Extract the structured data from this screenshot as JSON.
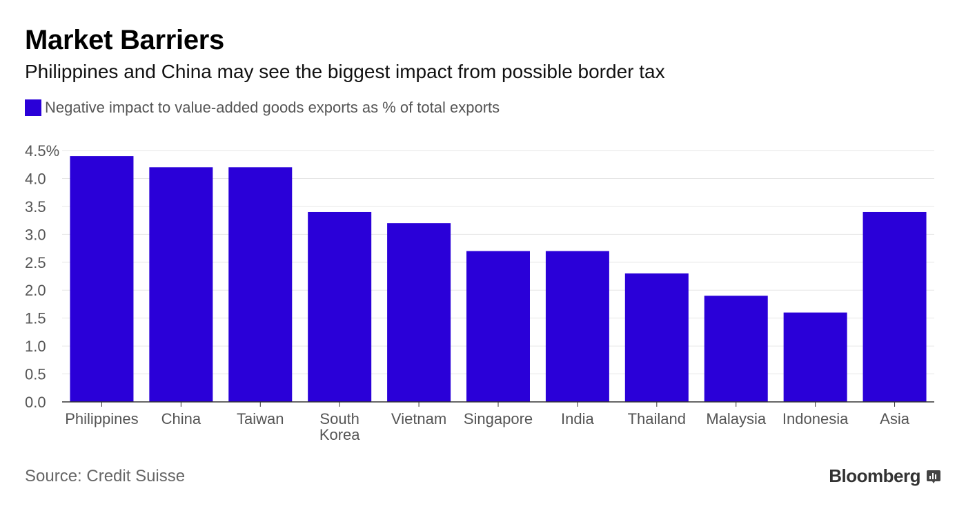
{
  "header": {
    "title": "Market Barriers",
    "subtitle": "Philippines and China may see the biggest impact from possible border tax"
  },
  "legend": {
    "label": "Negative impact to value-added goods exports as % of total exports"
  },
  "footer": {
    "source": "Source: Credit Suisse",
    "brand": "Bloomberg"
  },
  "colors": {
    "bar": "#2a00d8",
    "grid": "#e6e6e6",
    "axis": "#333333"
  },
  "chart_data": {
    "type": "bar",
    "categories": [
      "Philippines",
      "China",
      "Taiwan",
      "South Korea",
      "Vietnam",
      "Singapore",
      "India",
      "Thailand",
      "Malaysia",
      "Indonesia",
      "Asia"
    ],
    "category_lines": [
      [
        "Philippines"
      ],
      [
        "China"
      ],
      [
        "Taiwan"
      ],
      [
        "South",
        "Korea"
      ],
      [
        "Vietnam"
      ],
      [
        "Singapore"
      ],
      [
        "India"
      ],
      [
        "Thailand"
      ],
      [
        "Malaysia"
      ],
      [
        "Indonesia"
      ],
      [
        "Asia"
      ]
    ],
    "series": [
      {
        "name": "Negative impact to value-added goods exports as % of total exports",
        "values": [
          4.4,
          4.2,
          4.2,
          3.4,
          3.2,
          2.7,
          2.7,
          2.3,
          1.9,
          1.6,
          3.4
        ]
      }
    ],
    "yticks": [
      0.0,
      0.5,
      1.0,
      1.5,
      2.0,
      2.5,
      3.0,
      3.5,
      4.0,
      4.5
    ],
    "ytick_labels": [
      "0.0",
      "0.5",
      "1.0",
      "1.5",
      "2.0",
      "2.5",
      "3.0",
      "3.5",
      "4.0",
      "4.5%"
    ],
    "ylim": [
      0,
      4.5
    ],
    "grid": true,
    "legend_position": "top-left"
  }
}
